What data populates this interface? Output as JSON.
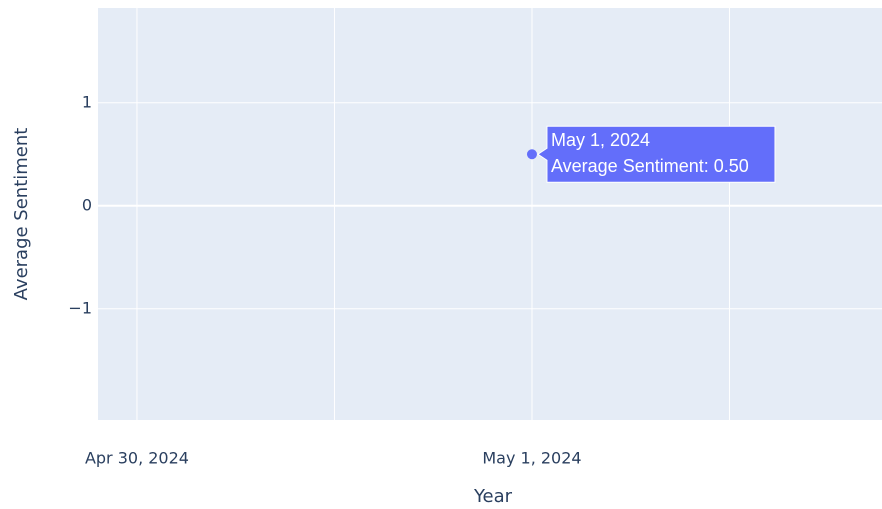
{
  "chart_data": {
    "type": "scatter",
    "x_label": "Year",
    "y_label": "Average Sentiment",
    "x": [
      "2024-05-01"
    ],
    "series": [
      {
        "name": "Average Sentiment",
        "color": "#636efa",
        "values": [
          0.5
        ]
      }
    ],
    "xlim": [
      "2024-04-29T21:38",
      "2024-05-01T21:16"
    ],
    "xticks": [
      {
        "value": "2024-04-30",
        "label": "Apr 30, 2024"
      },
      {
        "value": "2024-05-01",
        "label": "May 1, 2024"
      }
    ],
    "ylim": [
      -2.08,
      1.92
    ],
    "yticks": [
      {
        "value": -1,
        "label": "−1"
      },
      0,
      1
    ],
    "grid": true,
    "hover": {
      "title": "May 1, 2024",
      "text": "Average Sentiment: 0.50"
    }
  }
}
